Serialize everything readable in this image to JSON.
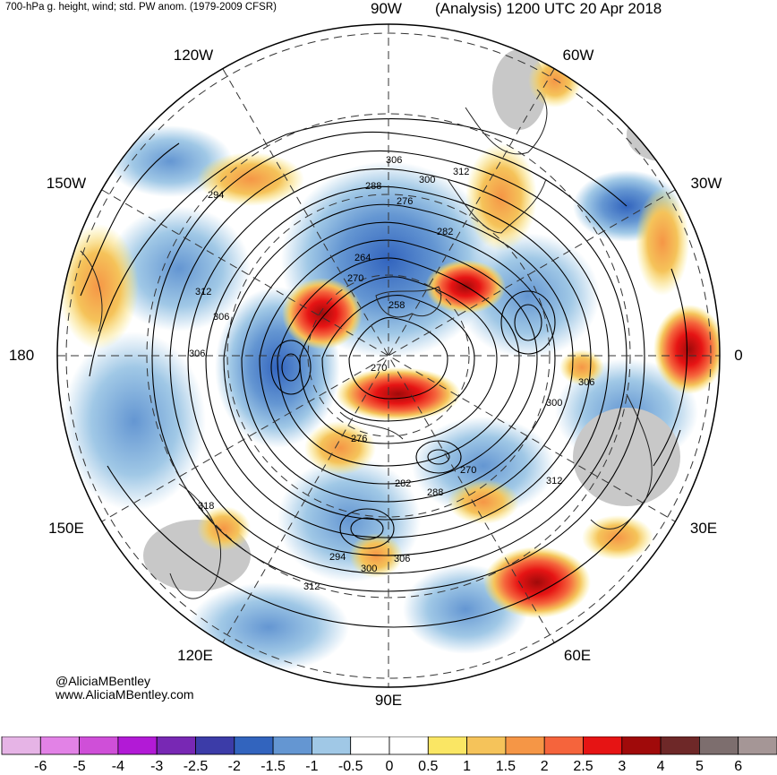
{
  "header": {
    "variables": "700-hPa g. height, wind; std. PW anom. (1979-2009 CFSR)",
    "top_longitude": "90W",
    "analysis": "(Analysis) 1200 UTC 20 Apr 2018"
  },
  "longitude_labels": {
    "w120": "120W",
    "w60": "60W",
    "w150": "150W",
    "w30": "30W",
    "d180": "180",
    "d0": "0",
    "e150": "150E",
    "e30": "30E",
    "e120": "120E",
    "e60": "60E",
    "e90": "90E"
  },
  "credits": {
    "twitter": "@AliciaMBentley",
    "website": "www.AliciaMBentley.com"
  },
  "contour_labels": [
    "306",
    "312",
    "300",
    "294",
    "288",
    "276",
    "282",
    "264",
    "270",
    "258",
    "312",
    "306",
    "306",
    "270",
    "276",
    "282",
    "288",
    "294",
    "300",
    "306",
    "312",
    "318",
    "306",
    "300",
    "312",
    "270"
  ],
  "colorbar": {
    "colors": [
      "#e6b4e6",
      "#e282e6",
      "#cf4fd8",
      "#b21ad6",
      "#7828b4",
      "#3c3ca8",
      "#3264be",
      "#6496d2",
      "#a0c8e6",
      "#ffffff",
      "#ffffff",
      "#fae664",
      "#f5c35a",
      "#f59646",
      "#f5643c",
      "#e61414",
      "#a00a0a",
      "#6e2828",
      "#7d6e6e",
      "#a59696"
    ],
    "labels": [
      "-6",
      "-5",
      "-4",
      "-3",
      "-2.5",
      "-2",
      "-1.5",
      "-1",
      "-0.5",
      "0",
      "0.5",
      "1",
      "1.5",
      "2",
      "2.5",
      "3",
      "4",
      "5",
      "6"
    ]
  },
  "colors": {
    "positive_anomaly": "#e61414",
    "negative_anomaly": "#3264be",
    "contour": "#000000",
    "land_mask": "#c8c8c8"
  }
}
